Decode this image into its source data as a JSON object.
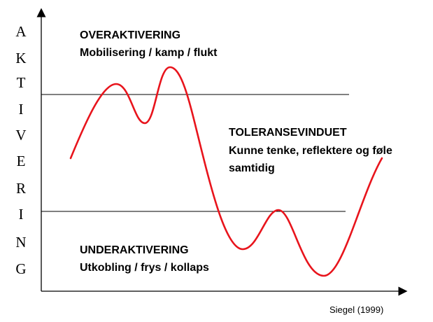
{
  "y_axis_letters": [
    "A",
    "K",
    "T",
    "I",
    "V",
    "E",
    "R",
    "I",
    "N",
    "G"
  ],
  "zones": {
    "over": {
      "title": "OVERAKTIVERING",
      "subtitle": "Mobilisering / kamp / flukt"
    },
    "window": {
      "title": "TOLERANSEVINDUET",
      "line1": "Kunne tenke, reflektere og føle",
      "line2": "samtidig"
    },
    "under": {
      "title": "UNDERAKTIVERING",
      "subtitle": "Utkobling / frys / kollaps"
    }
  },
  "source": "Siegel (1999)",
  "colors": {
    "curve": "#e8141c",
    "axis": "#000000",
    "threshold": "#000000"
  }
}
